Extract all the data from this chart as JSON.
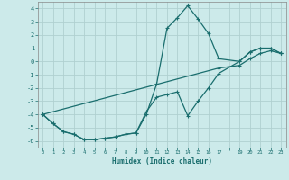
{
  "xlabel": "Humidex (Indice chaleur)",
  "bg_color": "#cceaea",
  "grid_color": "#b0d0d0",
  "line_color": "#1a6e6e",
  "xlim": [
    -0.5,
    23.5
  ],
  "ylim": [
    -6.5,
    4.5
  ],
  "yticks": [
    -6,
    -5,
    -4,
    -3,
    -2,
    -1,
    0,
    1,
    2,
    3,
    4
  ],
  "xticks": [
    0,
    1,
    2,
    3,
    4,
    5,
    6,
    7,
    8,
    9,
    10,
    11,
    12,
    13,
    14,
    15,
    16,
    17,
    19,
    20,
    21,
    22,
    23
  ],
  "line1_x": [
    0,
    1,
    2,
    3,
    4,
    5,
    6,
    7,
    8,
    9,
    10,
    11,
    12,
    13,
    14,
    15,
    16,
    17,
    19,
    20,
    21,
    22,
    23
  ],
  "line1_y": [
    -4.0,
    -4.7,
    -5.3,
    -5.5,
    -5.9,
    -5.9,
    -5.8,
    -5.7,
    -5.5,
    -5.4,
    -4.0,
    -1.7,
    2.5,
    3.3,
    4.2,
    3.2,
    2.1,
    0.2,
    0.0,
    0.7,
    1.0,
    1.0,
    0.6
  ],
  "line2_x": [
    0,
    1,
    2,
    3,
    4,
    5,
    6,
    7,
    8,
    9,
    10,
    11,
    12,
    13,
    14,
    15,
    16,
    17,
    19,
    20,
    21,
    22,
    23
  ],
  "line2_y": [
    -4.0,
    -4.7,
    -5.3,
    -5.5,
    -5.9,
    -5.9,
    -5.8,
    -5.7,
    -5.5,
    -5.4,
    -3.8,
    -2.7,
    -2.5,
    -2.3,
    -4.1,
    -3.0,
    -2.0,
    -0.9,
    0.0,
    0.7,
    1.0,
    1.0,
    0.6
  ],
  "line3_x": [
    0,
    17,
    19,
    20,
    21,
    22,
    23
  ],
  "line3_y": [
    -4.0,
    -0.5,
    -0.3,
    0.2,
    0.6,
    0.8,
    0.6
  ]
}
